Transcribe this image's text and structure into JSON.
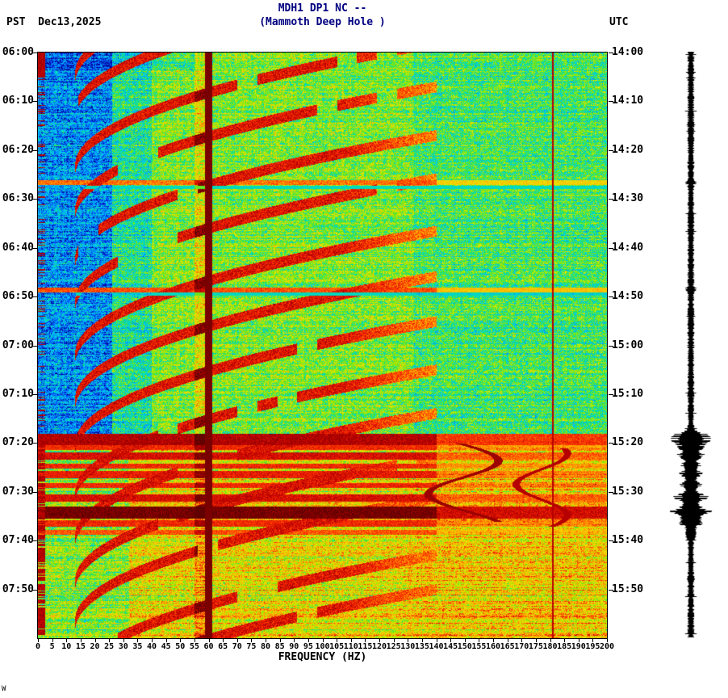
{
  "header": {
    "left_label": "PST  Dec13,2025",
    "title_line1": "MDH1 DP1 NC --",
    "title_line2": "(Mammoth Deep Hole )",
    "right_label": "UTC"
  },
  "axes": {
    "xlabel": "FREQUENCY (HZ)",
    "x_ticks_hz": [
      0,
      5,
      10,
      15,
      20,
      25,
      30,
      35,
      40,
      45,
      50,
      55,
      60,
      65,
      70,
      75,
      80,
      85,
      90,
      95,
      100,
      105,
      110,
      115,
      120,
      125,
      130,
      135,
      140,
      145,
      150,
      155,
      160,
      165,
      170,
      175,
      180,
      185,
      190,
      195,
      200
    ],
    "left_time_ticks": [
      "06:00",
      "06:10",
      "06:20",
      "06:30",
      "06:40",
      "06:50",
      "07:00",
      "07:10",
      "07:20",
      "07:30",
      "07:40",
      "07:50"
    ],
    "right_time_ticks": [
      "14:00",
      "14:10",
      "14:20",
      "14:30",
      "14:40",
      "14:50",
      "15:00",
      "15:10",
      "15:20",
      "15:30",
      "15:40",
      "15:50"
    ]
  },
  "footer": {
    "corner_mark": "W"
  },
  "chart_data": {
    "type": "heatmap",
    "title": "MDH1 DP1 NC -- (Mammoth Deep Hole )",
    "station": "MDH1",
    "channel": "DP1",
    "network": "NC",
    "xlabel": "FREQUENCY (HZ)",
    "x_range_hz": [
      0,
      200
    ],
    "x_tick_step_hz": 5,
    "y_axis": {
      "left_zone": "PST",
      "left_date": "Dec13,2025",
      "left_start": "06:00",
      "left_end": "08:00",
      "right_zone": "UTC",
      "right_start": "14:00",
      "right_end": "16:00",
      "tick_step_minutes": 10
    },
    "grid": "off",
    "legend": "none",
    "colormap": [
      "#000090",
      "#0050ff",
      "#00c8ff",
      "#00e0a0",
      "#80e800",
      "#e8e800",
      "#ffb000",
      "#ff3000",
      "#c00000",
      "#600000"
    ],
    "features": {
      "mains_hum_line_hz": 60,
      "narrow_line_hz": 181,
      "harmonic_glide_arcs": {
        "count": 14,
        "f_min_hz": 13,
        "f_max_hz": 138,
        "sweep_minutes": 25,
        "repeat_minutes": 9.5,
        "direction": "frequency decreases with time (arcs curve up-right)"
      },
      "background_regime_change_pst": "07:19",
      "low_frequency_quiet_band_hz": [
        4,
        26
      ],
      "broadband_bursts_pst": [
        "06:27",
        "06:49",
        "07:19",
        "07:21",
        "07:23",
        "07:25",
        "07:27",
        "07:29",
        "07:31",
        "07:34",
        "07:36",
        "07:38"
      ],
      "wiggly_narrowband_tracks_hz": [
        150,
        178
      ]
    },
    "seismogram": {
      "position": "right margin",
      "color": "#000000",
      "events_pst": [
        "06:27",
        "06:49",
        "07:19",
        "07:23",
        "07:26",
        "07:31",
        "07:34",
        "07:36"
      ]
    }
  }
}
